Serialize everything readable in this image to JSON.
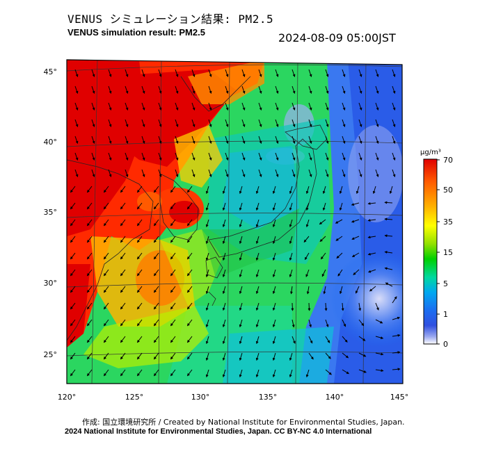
{
  "title": {
    "japanese": "VENUS シミュレーション結果: PM2.5",
    "english": "VENUS simulation result: PM2.5",
    "timestamp": "2024-08-09 05:00JST"
  },
  "map": {
    "longitude_ticks": [
      "120°",
      "125°",
      "130°",
      "135°",
      "140°",
      "145°"
    ],
    "latitude_ticks": [
      "45°",
      "40°",
      "35°",
      "30°",
      "25°"
    ],
    "longitude_range": [
      120,
      145
    ],
    "latitude_range": [
      23,
      46
    ],
    "features": "PM2.5 concentration field with wind vectors; East Asia (China, Korea, Japan)"
  },
  "colorbar": {
    "unit": "μg/m³",
    "tick_labels": [
      "70",
      "50",
      "35",
      "15",
      "5",
      "1",
      "0"
    ],
    "tick_values": [
      70,
      50,
      35,
      15,
      5,
      1,
      0
    ],
    "colors": [
      "#e00000",
      "#ff5a00",
      "#ffb400",
      "#ffff00",
      "#90e000",
      "#00d000",
      "#00d8a0",
      "#00a8f0",
      "#1c6cf0",
      "#3050e0",
      "#9aa8f0",
      "#ffffff"
    ]
  },
  "footer": {
    "credit_line": "作成: 国立環境研究所 / Created by National Institute for Environmental Studies, Japan.",
    "license_line": "2024 National Institute for Environmental Studies, Japan. CC BY-NC 4.0 International"
  }
}
